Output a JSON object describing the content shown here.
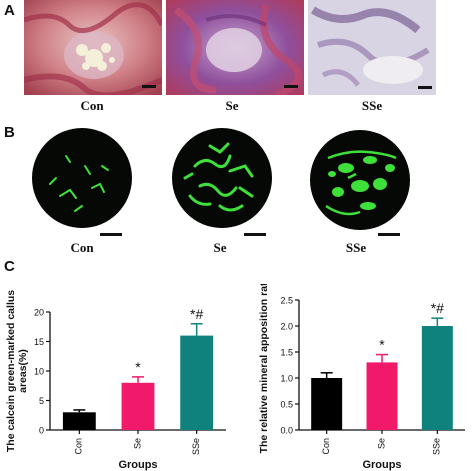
{
  "panels": {
    "a": {
      "letter": "A",
      "labels": [
        "Con",
        "Se",
        "SSe"
      ]
    },
    "b": {
      "letter": "B",
      "labels": [
        "Con",
        "Se",
        "SSe"
      ]
    },
    "c": {
      "letter": "C"
    }
  },
  "colors": {
    "con": "#000000",
    "se": "#f0196a",
    "sse": "#10827e",
    "fluorescence": "#3fe03a",
    "stain_pink": "#c85a7a",
    "stain_purple": "#7c3f8a"
  },
  "chart_data": [
    {
      "type": "bar",
      "ylabel": "The calcein green-marked callus areas(%)",
      "xlabel": "Groups",
      "categories": [
        "Con",
        "Se",
        "SSe"
      ],
      "values": [
        3,
        8,
        16
      ],
      "errors": [
        0.4,
        1.0,
        2.0
      ],
      "ylim": [
        0,
        20
      ],
      "yticks": [
        0,
        5,
        10,
        15,
        20
      ],
      "annotations": [
        "",
        "*",
        "*#"
      ],
      "bar_colors": [
        "#000000",
        "#f0196a",
        "#10827e"
      ]
    },
    {
      "type": "bar",
      "ylabel": "The relative mineral apposition rate",
      "xlabel": "Groups",
      "categories": [
        "Con",
        "Se",
        "SSe"
      ],
      "values": [
        1.0,
        1.3,
        2.0
      ],
      "errors": [
        0.1,
        0.15,
        0.15
      ],
      "ylim": [
        0,
        2.5
      ],
      "yticks": [
        0.0,
        0.5,
        1.0,
        1.5,
        2.0,
        2.5
      ],
      "annotations": [
        "",
        "*",
        "*#"
      ],
      "bar_colors": [
        "#000000",
        "#f0196a",
        "#10827e"
      ]
    }
  ]
}
